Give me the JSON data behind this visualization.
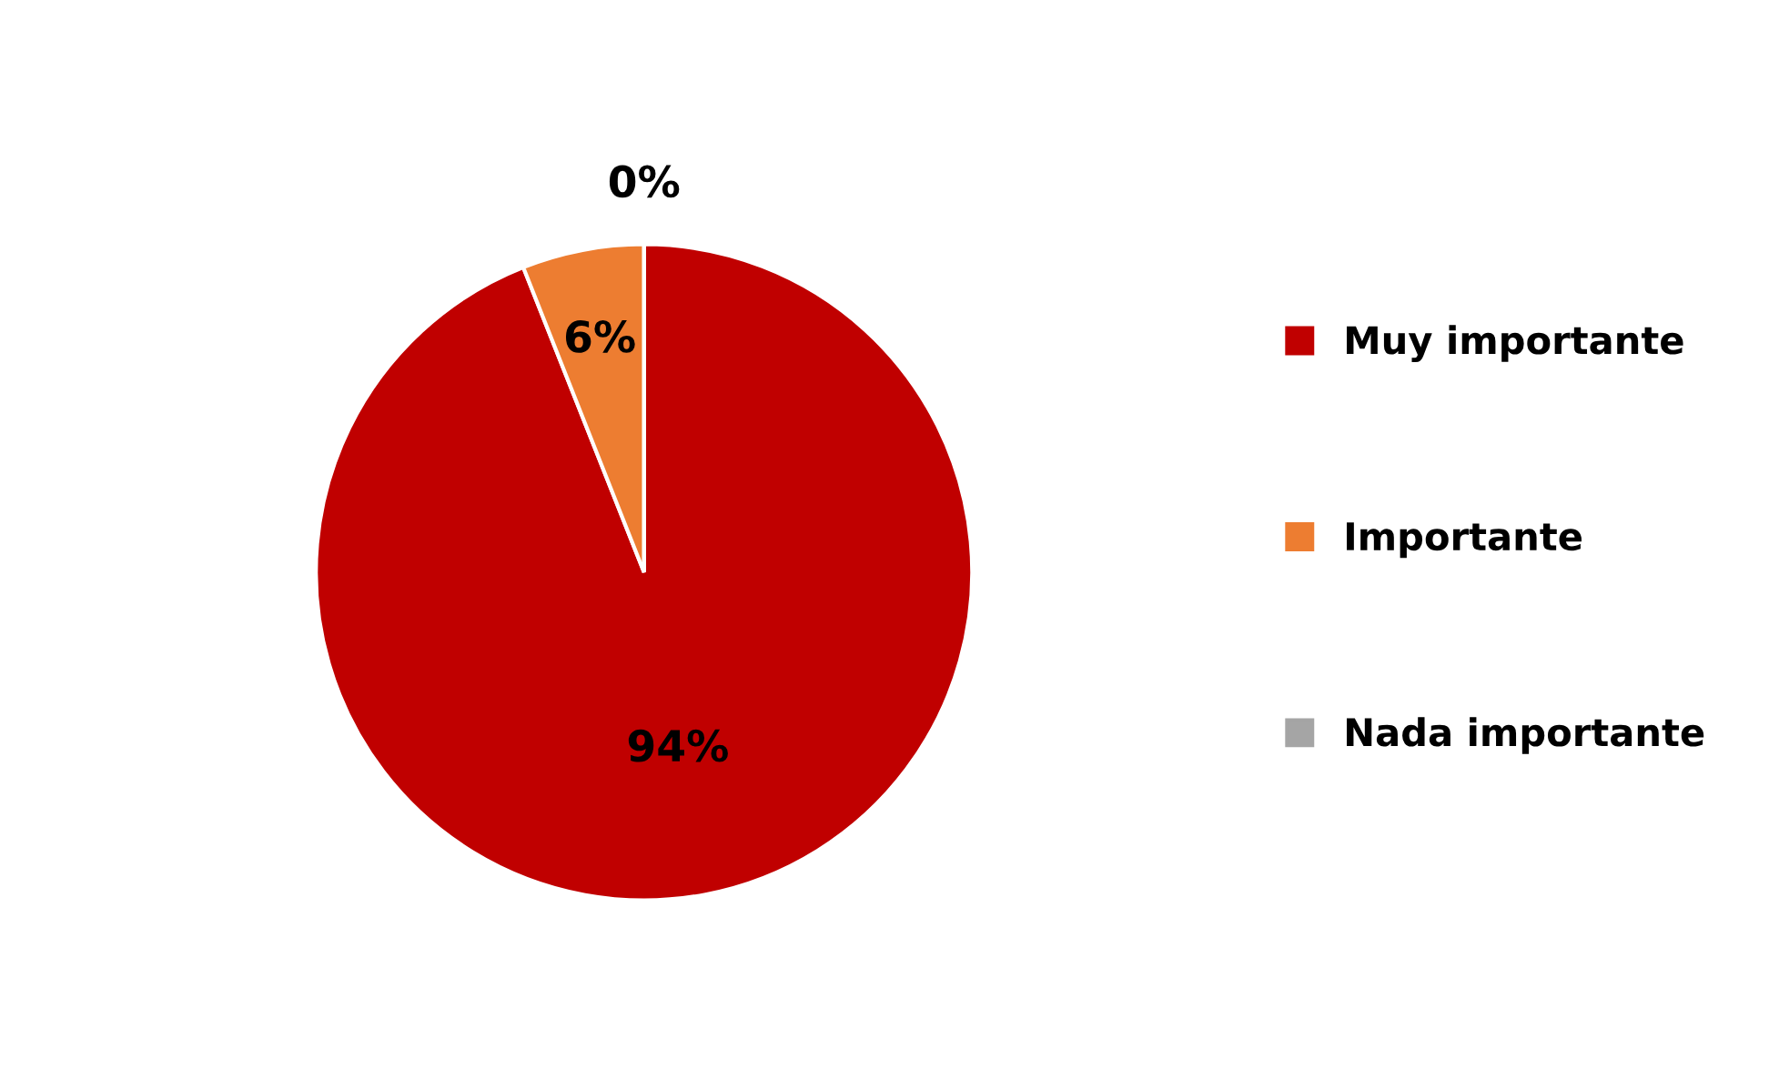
{
  "chart_data": {
    "type": "pie",
    "categories": [
      "Muy importante",
      "Importante",
      "Nada importante"
    ],
    "values": [
      94,
      6,
      0
    ],
    "colors": [
      "#c00000",
      "#ed7d31",
      "#a5a5a5"
    ],
    "value_labels": [
      "94%",
      "6%",
      "0%"
    ],
    "legend": "right"
  }
}
